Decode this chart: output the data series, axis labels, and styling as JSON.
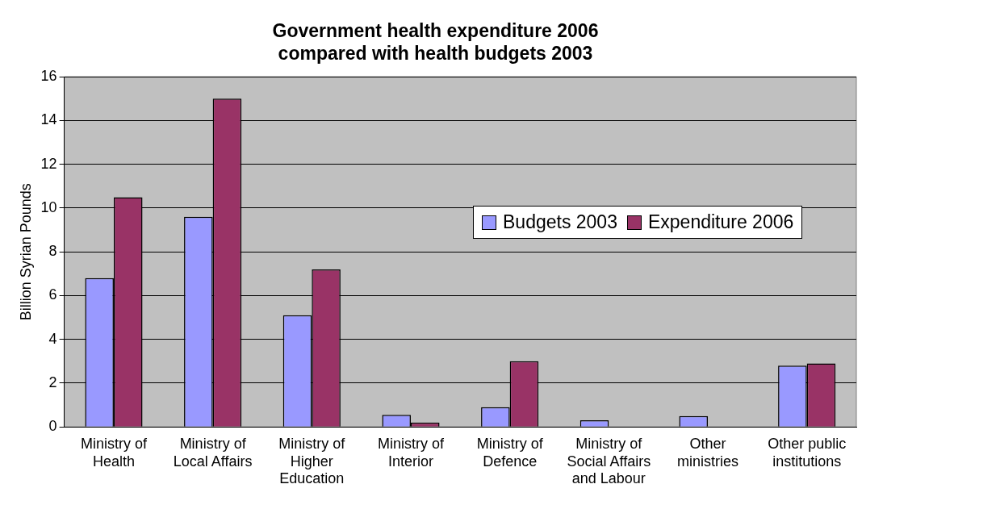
{
  "chart_data": {
    "type": "bar",
    "title": "Government health expenditure 2006\ncompared with health budgets 2003",
    "ylabel": "Billion Syrian Pounds",
    "categories": [
      "Ministry of Health",
      "Ministry of Local Affairs",
      "Ministry of Higher Education",
      "Ministry of Interior",
      "Ministry of Defence",
      "Ministry of Social Affairs and Labour",
      "Other ministries",
      "Other public institutions"
    ],
    "series": [
      {
        "name": "Budgets 2003",
        "color": "#9999ff",
        "values": [
          6.8,
          9.6,
          5.1,
          0.55,
          0.9,
          0.3,
          0.5,
          2.8
        ]
      },
      {
        "name": "Expenditure 2006",
        "color": "#993366",
        "values": [
          10.5,
          15.0,
          7.2,
          0.2,
          3.0,
          null,
          null,
          2.9
        ]
      }
    ],
    "ylim": [
      0,
      16
    ],
    "yticks": [
      0,
      2,
      4,
      6,
      8,
      10,
      12,
      14,
      16
    ],
    "grid": "y",
    "legend": "right"
  }
}
